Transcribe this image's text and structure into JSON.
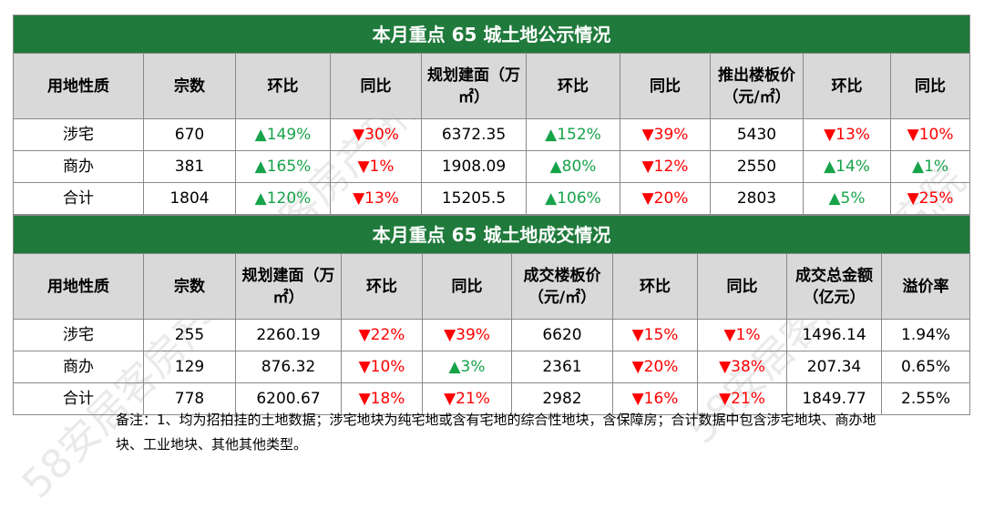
{
  "table1": {
    "title": "本月重点 65 城土地公示情况",
    "headers": [
      "用地性质",
      "宗数",
      "环比",
      "同比",
      "规划建面（万㎡）",
      "环比",
      "同比",
      "推出楼板价（元/㎡）",
      "环比",
      "同比"
    ],
    "rows": [
      [
        "涉宅",
        "670",
        "▲149%",
        "▼30%",
        "6372.35",
        "▲152%",
        "▼39%",
        "5430",
        "▼13%",
        "▼10%"
      ],
      [
        "商办",
        "381",
        "▲165%",
        "▼1%",
        "1908.09",
        "▲80%",
        "▼12%",
        "2550",
        "▲14%",
        "▲1%"
      ],
      [
        "合计",
        "1804",
        "▲120%",
        "▼13%",
        "15205.5",
        "▲106%",
        "▼20%",
        "2803",
        "▲5%",
        "▼25%"
      ]
    ]
  },
  "table2": {
    "title": "本月重点 65 城土地成交情况",
    "headers": [
      "用地性质",
      "宗数",
      "规划建面（万㎡）",
      "环比",
      "同比",
      "成交楼板价（元/㎡）",
      "环比",
      "同比",
      "成交总金额（亿元）",
      "溢价率"
    ],
    "rows": [
      [
        "涉宅",
        "255",
        "2260.19",
        "▼22%",
        "▼39%",
        "6620",
        "▼15%",
        "▼1%",
        "1496.14",
        "1.94%"
      ],
      [
        "商办",
        "129",
        "876.32",
        "▼10%",
        "▲3%",
        "2361",
        "▼20%",
        "▼38%",
        "207.34",
        "0.65%"
      ],
      [
        "合计",
        "778",
        "6200.67",
        "▼18%",
        "▼21%",
        "2982",
        "▼16%",
        "▼21%",
        "1849.77",
        "2.55%"
      ]
    ]
  },
  "note": "备注：1、均为招拍挂的土地数据；涉宅地块为纯宅地或含有宅地的综合性地块，含保障房；合计数据中包含涉宅地块、商办地块、工业地块、其他其他类型。",
  "watermark": "58安居客房产研究院",
  "colors": {
    "title_bg": "#1f7a3b",
    "header_bg": "#d9d9d9",
    "up": "#17a34a",
    "down": "#ff0000"
  }
}
